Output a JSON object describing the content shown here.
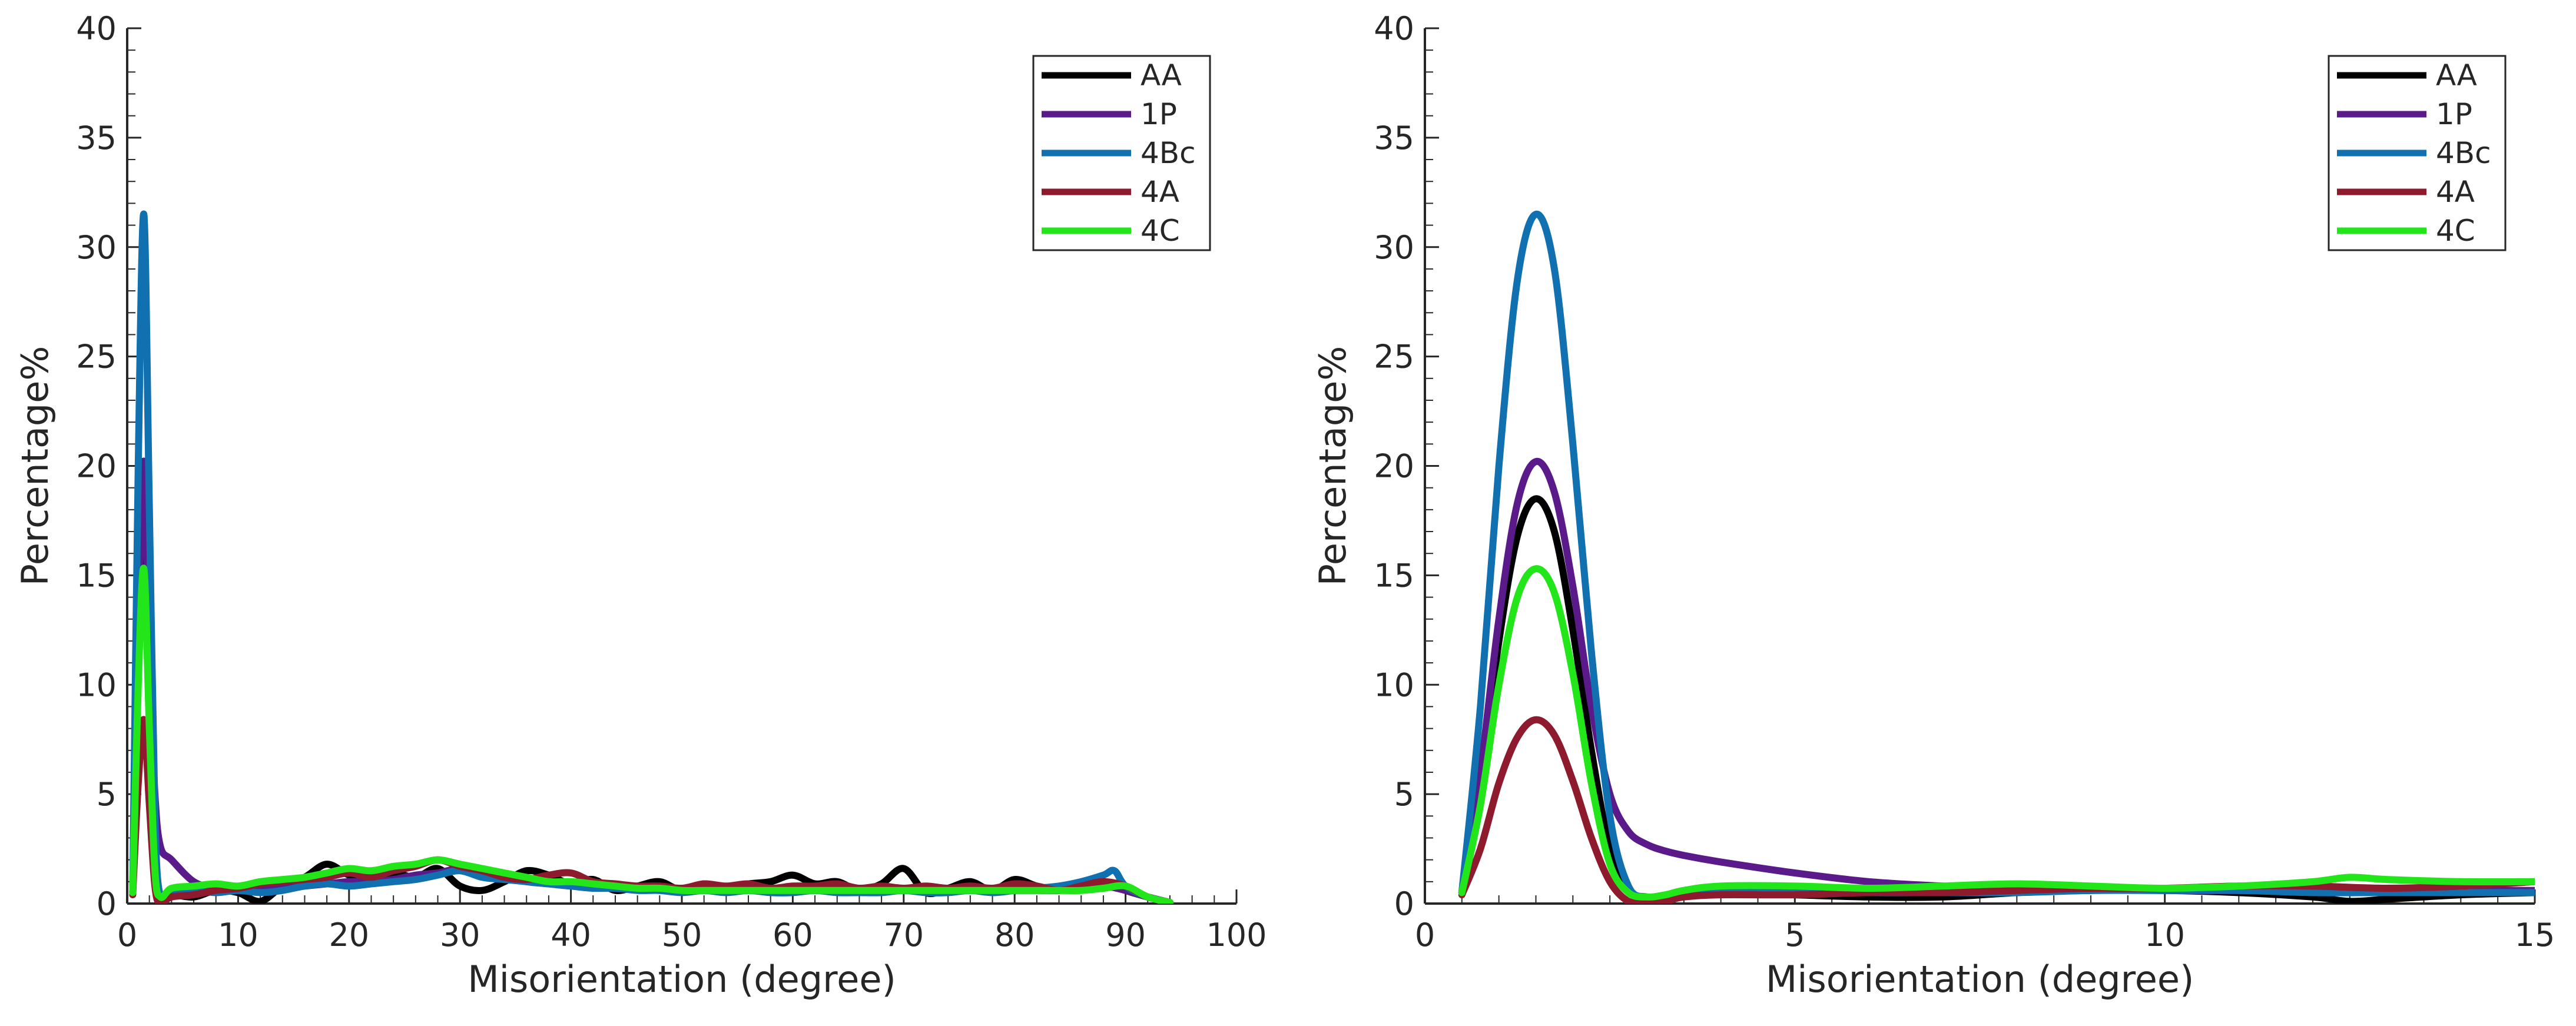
{
  "chart_data": [
    {
      "type": "line",
      "id": "left",
      "title": "",
      "xlabel": "Misorientation (degree)",
      "ylabel": "Percentage%",
      "xlim": [
        0,
        100
      ],
      "ylim": [
        0,
        40
      ],
      "xticks": [
        0,
        10,
        20,
        30,
        40,
        50,
        60,
        70,
        80,
        90,
        100
      ],
      "yticks": [
        0,
        5,
        10,
        15,
        20,
        25,
        30,
        35,
        40
      ],
      "xtick_labels": [
        "0",
        "10",
        "20",
        "30",
        "40",
        "50",
        "60",
        "70",
        "80",
        "90",
        "100"
      ],
      "ytick_labels": [
        "0",
        "5",
        "10",
        "15",
        "20",
        "25",
        "30",
        "35",
        "40"
      ],
      "legend_position": "top-right",
      "series": [
        {
          "name": "AA",
          "color": "#000000",
          "x": [
            0.5,
            1,
            1.5,
            2,
            2.5,
            3,
            4,
            6,
            8,
            10,
            12,
            14,
            16,
            18,
            20,
            22,
            24,
            26,
            28,
            30,
            32,
            34,
            36,
            38,
            40,
            42,
            44,
            46,
            48,
            50,
            52,
            54,
            56,
            58,
            60,
            62,
            64,
            66,
            68,
            70,
            72,
            74,
            76,
            78,
            80,
            82,
            84,
            86,
            88,
            90,
            92,
            94
          ],
          "y": [
            0.5,
            12,
            18.5,
            9,
            1.5,
            0.2,
            0.4,
            0.3,
            0.6,
            0.5,
            0.1,
            0.8,
            1.2,
            1.8,
            1.3,
            1.1,
            1.4,
            1.2,
            1.6,
            0.8,
            0.6,
            1.0,
            1.5,
            1.3,
            0.9,
            1.1,
            0.6,
            0.8,
            1.0,
            0.6,
            0.9,
            0.7,
            0.9,
            1.0,
            1.3,
            0.9,
            1.0,
            0.6,
            0.9,
            1.6,
            0.5,
            0.7,
            1.0,
            0.6,
            1.1,
            0.8,
            0.6,
            0.9,
            1.0,
            0.6,
            0.3,
            0.05
          ]
        },
        {
          "name": "1P",
          "color": "#5b1a8a",
          "x": [
            0.5,
            1,
            1.5,
            2,
            2.5,
            3,
            4,
            6,
            8,
            10,
            12,
            14,
            16,
            18,
            20,
            22,
            24,
            26,
            28,
            30,
            32,
            34,
            36,
            38,
            40,
            42,
            44,
            46,
            48,
            50,
            52,
            54,
            56,
            58,
            60,
            62,
            64,
            66,
            68,
            70,
            72,
            74,
            76,
            78,
            80,
            82,
            84,
            86,
            88,
            90,
            92,
            94
          ],
          "y": [
            0.5,
            13,
            20.2,
            11,
            5,
            2.6,
            2.0,
            1.0,
            0.7,
            0.6,
            0.6,
            0.7,
            0.8,
            0.9,
            1.0,
            1.0,
            1.1,
            1.3,
            1.4,
            1.6,
            1.4,
            1.2,
            1.0,
            0.9,
            0.8,
            0.8,
            0.7,
            0.7,
            0.7,
            0.6,
            0.6,
            0.6,
            0.6,
            0.6,
            0.6,
            0.6,
            0.6,
            0.6,
            0.6,
            0.6,
            0.6,
            0.6,
            0.6,
            0.6,
            0.6,
            0.6,
            0.6,
            0.7,
            0.8,
            0.6,
            0.3,
            0.05
          ]
        },
        {
          "name": "4Bc",
          "color": "#1070b0",
          "x": [
            0.5,
            1,
            1.5,
            2,
            2.5,
            3,
            4,
            6,
            8,
            10,
            12,
            14,
            16,
            18,
            20,
            22,
            24,
            26,
            28,
            30,
            32,
            34,
            36,
            38,
            40,
            42,
            44,
            46,
            48,
            50,
            52,
            54,
            56,
            58,
            60,
            62,
            64,
            66,
            68,
            70,
            72,
            74,
            76,
            78,
            80,
            82,
            84,
            86,
            88,
            89,
            90,
            92,
            94
          ],
          "y": [
            0.5,
            20,
            31.5,
            18,
            4,
            0.3,
            0.5,
            0.6,
            0.5,
            0.6,
            0.5,
            0.6,
            0.8,
            0.9,
            0.8,
            0.9,
            1.0,
            1.1,
            1.3,
            1.5,
            1.2,
            1.1,
            1.0,
            0.9,
            0.8,
            0.7,
            0.7,
            0.6,
            0.6,
            0.5,
            0.6,
            0.5,
            0.6,
            0.5,
            0.5,
            0.6,
            0.5,
            0.5,
            0.5,
            0.6,
            0.5,
            0.5,
            0.6,
            0.5,
            0.6,
            0.7,
            0.8,
            1.0,
            1.3,
            1.5,
            0.8,
            0.3,
            0.05
          ]
        },
        {
          "name": "4A",
          "color": "#8e1a2e",
          "x": [
            0.5,
            1,
            1.5,
            2,
            2.5,
            3,
            4,
            6,
            8,
            10,
            12,
            14,
            16,
            18,
            20,
            22,
            24,
            26,
            28,
            30,
            32,
            34,
            36,
            38,
            40,
            42,
            44,
            46,
            48,
            50,
            52,
            54,
            56,
            58,
            60,
            62,
            64,
            66,
            68,
            70,
            72,
            74,
            76,
            78,
            80,
            82,
            84,
            86,
            88,
            90,
            92,
            94
          ],
          "y": [
            0.4,
            5.5,
            8.4,
            4.5,
            0.8,
            0.0,
            0.3,
            0.4,
            0.6,
            0.7,
            0.9,
            1.0,
            1.1,
            1.2,
            1.4,
            1.2,
            1.5,
            1.7,
            2.0,
            1.7,
            1.5,
            1.2,
            1.1,
            1.3,
            1.4,
            1.0,
            0.9,
            0.8,
            0.8,
            0.7,
            0.9,
            0.8,
            0.9,
            0.7,
            0.8,
            0.8,
            0.9,
            0.7,
            0.8,
            0.7,
            0.8,
            0.7,
            0.8,
            0.7,
            0.9,
            0.8,
            0.6,
            0.8,
            1.0,
            0.8,
            0.3,
            0.05
          ]
        },
        {
          "name": "4C",
          "color": "#22e61a",
          "x": [
            0.5,
            1,
            1.5,
            2,
            2.5,
            3,
            4,
            6,
            8,
            10,
            12,
            14,
            16,
            18,
            20,
            22,
            24,
            26,
            28,
            30,
            32,
            34,
            36,
            38,
            40,
            42,
            44,
            46,
            48,
            50,
            52,
            54,
            56,
            58,
            60,
            62,
            64,
            66,
            68,
            70,
            72,
            74,
            76,
            78,
            80,
            82,
            84,
            86,
            88,
            90,
            92,
            94
          ],
          "y": [
            0.5,
            10,
            15.3,
            8,
            1.5,
            0.3,
            0.7,
            0.8,
            0.9,
            0.8,
            1.0,
            1.1,
            1.2,
            1.4,
            1.6,
            1.5,
            1.7,
            1.8,
            2.0,
            1.8,
            1.6,
            1.4,
            1.2,
            1.0,
            1.0,
            0.9,
            0.8,
            0.7,
            0.7,
            0.6,
            0.6,
            0.6,
            0.6,
            0.6,
            0.6,
            0.6,
            0.6,
            0.6,
            0.6,
            0.6,
            0.6,
            0.6,
            0.6,
            0.6,
            0.6,
            0.6,
            0.6,
            0.6,
            0.7,
            0.8,
            0.3,
            0.05
          ]
        }
      ]
    },
    {
      "type": "line",
      "id": "right",
      "title": "",
      "xlabel": "Misorientation (degree)",
      "ylabel": "Percentage%",
      "xlim": [
        0,
        15
      ],
      "ylim": [
        0,
        40
      ],
      "xticks": [
        0,
        5,
        10,
        15
      ],
      "yticks": [
        0,
        5,
        10,
        15,
        20,
        25,
        30,
        35,
        40
      ],
      "xtick_labels": [
        "0",
        "5",
        "10",
        "15"
      ],
      "ytick_labels": [
        "0",
        "5",
        "10",
        "15",
        "20",
        "25",
        "30",
        "35",
        "40"
      ],
      "legend_position": "top-right",
      "series": [
        {
          "name": "AA",
          "color": "#000000",
          "x": [
            0.5,
            0.75,
            1.0,
            1.25,
            1.5,
            1.75,
            2.0,
            2.25,
            2.5,
            2.75,
            3.0,
            3.25,
            3.5,
            4,
            5,
            6,
            7,
            8,
            9,
            10,
            11,
            12,
            12.5,
            13,
            14,
            15
          ],
          "y": [
            0.5,
            5.5,
            12.0,
            16.8,
            18.5,
            17.0,
            12.5,
            7.0,
            2.5,
            0.6,
            0.2,
            0.25,
            0.4,
            0.5,
            0.4,
            0.3,
            0.3,
            0.5,
            0.6,
            0.6,
            0.5,
            0.3,
            0.1,
            0.2,
            0.4,
            0.5
          ]
        },
        {
          "name": "1P",
          "color": "#5b1a8a",
          "x": [
            0.5,
            0.75,
            1.0,
            1.25,
            1.5,
            1.75,
            2.0,
            2.25,
            2.5,
            2.75,
            3.0,
            3.25,
            3.5,
            4,
            5,
            6,
            7,
            8,
            9,
            10,
            11,
            12,
            13,
            14,
            15
          ],
          "y": [
            0.5,
            6.0,
            13.0,
            18.3,
            20.2,
            18.8,
            14.5,
            9.0,
            5.0,
            3.3,
            2.7,
            2.4,
            2.2,
            1.9,
            1.4,
            1.0,
            0.8,
            0.7,
            0.7,
            0.6,
            0.6,
            0.6,
            0.6,
            0.6,
            0.6
          ]
        },
        {
          "name": "4Bc",
          "color": "#1070b0",
          "x": [
            0.5,
            0.75,
            1.0,
            1.25,
            1.5,
            1.75,
            2.0,
            2.25,
            2.5,
            2.75,
            3.0,
            3.25,
            3.5,
            4,
            5,
            6,
            7,
            8,
            9,
            10,
            11,
            12,
            13,
            14,
            15
          ],
          "y": [
            0.5,
            9.0,
            20.0,
            28.5,
            31.5,
            29.0,
            21.0,
            11.5,
            4.0,
            0.8,
            0.3,
            0.35,
            0.5,
            0.6,
            0.6,
            0.5,
            0.5,
            0.5,
            0.6,
            0.6,
            0.6,
            0.5,
            0.5,
            0.5,
            0.5
          ]
        },
        {
          "name": "4A",
          "color": "#8e1a2e",
          "x": [
            0.5,
            0.75,
            1.0,
            1.25,
            1.5,
            1.75,
            2.0,
            2.25,
            2.5,
            2.75,
            3.0,
            3.25,
            3.5,
            4,
            5,
            6,
            7,
            8,
            9,
            10,
            11,
            12,
            13,
            14,
            15
          ],
          "y": [
            0.4,
            2.5,
            5.5,
            7.6,
            8.4,
            7.7,
            5.6,
            3.0,
            1.0,
            0.1,
            0.0,
            0.1,
            0.3,
            0.4,
            0.4,
            0.5,
            0.5,
            0.6,
            0.7,
            0.7,
            0.8,
            0.8,
            0.7,
            0.8,
            1.0
          ]
        },
        {
          "name": "4C",
          "color": "#22e61a",
          "x": [
            0.5,
            0.75,
            1.0,
            1.25,
            1.5,
            1.75,
            2.0,
            2.25,
            2.5,
            2.75,
            3.0,
            3.25,
            3.5,
            4,
            5,
            6,
            7,
            8,
            9,
            10,
            11,
            12,
            12.5,
            13,
            14,
            15
          ],
          "y": [
            0.5,
            4.5,
            10.0,
            14.0,
            15.3,
            14.2,
            10.5,
            5.5,
            1.8,
            0.5,
            0.3,
            0.4,
            0.6,
            0.8,
            0.8,
            0.7,
            0.8,
            0.9,
            0.8,
            0.7,
            0.8,
            1.0,
            1.2,
            1.1,
            1.0,
            1.0
          ]
        }
      ]
    }
  ]
}
